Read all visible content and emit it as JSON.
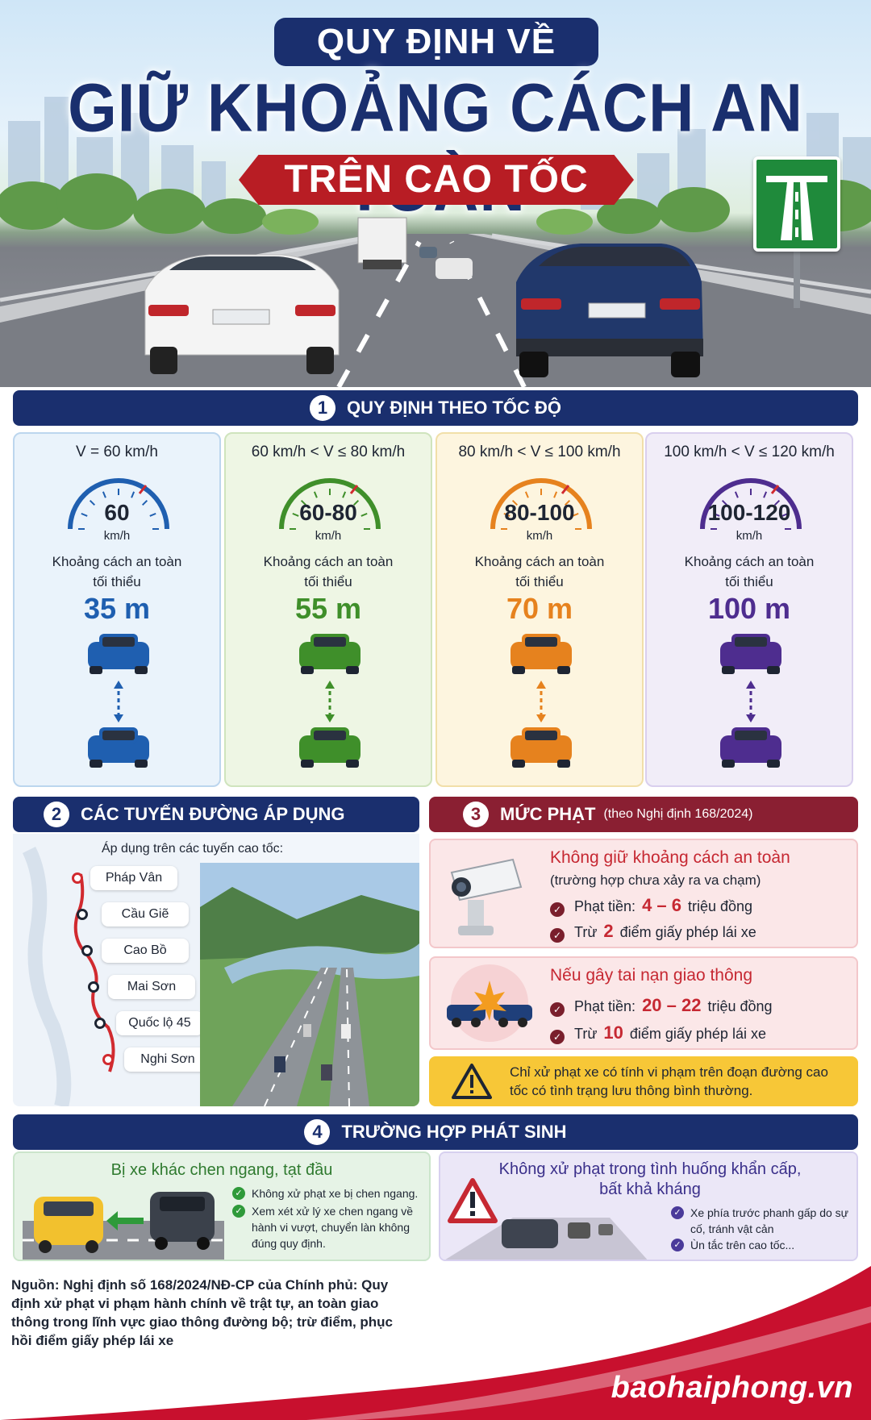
{
  "header": {
    "title_top": "QUY ĐỊNH VỀ",
    "title_main": "GIỮ KHOẢNG CÁCH AN TOÀN",
    "title_red": "TRÊN CAO TỐC"
  },
  "section1": {
    "number": "1",
    "title": "QUY ĐỊNH THEO TỐC ĐỘ",
    "cards": [
      {
        "range": "V = 60 km/h",
        "gauge": "60",
        "unit": "km/h",
        "label_1": "Khoảng cách an toàn",
        "label_2": "tối thiểu",
        "distance": "35 m",
        "color": "#1f5fb0",
        "bg": "#eaf3fb",
        "border": "#bcd6ee"
      },
      {
        "range": "60 km/h < V ≤ 80 km/h",
        "gauge": "60-80",
        "unit": "km/h",
        "label_1": "Khoảng cách an toàn",
        "label_2": "tối thiểu",
        "distance": "55 m",
        "color": "#3f8f2a",
        "bg": "#eef6e4",
        "border": "#cfe4bd"
      },
      {
        "range": "80 km/h < V ≤ 100 km/h",
        "gauge": "80-100",
        "unit": "km/h",
        "label_1": "Khoảng cách an toàn",
        "label_2": "tối thiểu",
        "distance": "70 m",
        "color": "#e6821e",
        "bg": "#fdf5df",
        "border": "#f1dfa9"
      },
      {
        "range": "100 km/h < V ≤ 120 km/h",
        "gauge": "100-120",
        "unit": "km/h",
        "label_1": "Khoảng cách an toàn",
        "label_2": "tối thiểu",
        "distance": "100 m",
        "color": "#4e2d8f",
        "bg": "#f1edf8",
        "border": "#d9cfee"
      }
    ]
  },
  "section2": {
    "number": "2",
    "title": "CÁC TUYẾN ĐƯỜNG ÁP DỤNG",
    "subtitle": "Áp dụng trên các tuyến cao tốc:",
    "routes": [
      "Pháp Vân",
      "Cầu Giẽ",
      "Cao Bồ",
      "Mai Sơn",
      "Quốc lộ 45",
      "Nghi Sơn"
    ]
  },
  "section3": {
    "number": "3",
    "title": "MỨC PHẠT",
    "title_note": "(theo Nghị định 168/2024)",
    "case1": {
      "title": "Không giữ khoảng cách an toàn",
      "note": "(trường hợp chưa xảy ra va chạm)",
      "fine_label": "Phạt tiền:",
      "fine_value": "4 – 6",
      "fine_unit": "triệu đồng",
      "point_label": "Trừ",
      "point_value": "2",
      "point_unit": "điểm giấy phép lái xe"
    },
    "case2": {
      "title": "Nếu gây tai nạn giao thông",
      "fine_label": "Phạt tiền:",
      "fine_value": "20 – 22",
      "fine_unit": "triệu đồng",
      "point_label": "Trừ",
      "point_value": "10",
      "point_unit": "điểm giấy phép lái xe"
    },
    "warning": "Chỉ xử phạt xe có tính vi phạm trên đoạn đường cao tốc có tình trạng lưu thông bình thường."
  },
  "section4": {
    "number": "4",
    "title": "TRƯỜNG HỢP PHÁT SINH",
    "left": {
      "title": "Bị xe khác chen ngang, tạt đầu",
      "items": [
        "Không xử phạt xe bị chen ngang.",
        "Xem xét xử lý xe chen ngang về hành vi vượt, chuyển làn không đúng quy định."
      ]
    },
    "right": {
      "title": "Không xử phạt trong tình huống khẩn cấp, bất khả kháng",
      "items": [
        "Xe phía trước phanh gấp do sự cố, tránh vật cản",
        "Ùn tắc trên cao tốc..."
      ]
    }
  },
  "footer": {
    "source": "Nguồn: Nghị định số 168/2024/NĐ-CP của Chính phủ: Quy định xử phạt vi phạm hành chính về trật tự, an toàn giao thông trong lĩnh vực giao thông đường bộ; trừ điểm, phục hồi điểm giấy phép lái xe",
    "brand": "baohaiphong.vn"
  },
  "colors": {
    "navy": "#1a2f6e",
    "red": "#b81d24",
    "maroon": "#8a1f32",
    "yellow": "#f7c737"
  }
}
